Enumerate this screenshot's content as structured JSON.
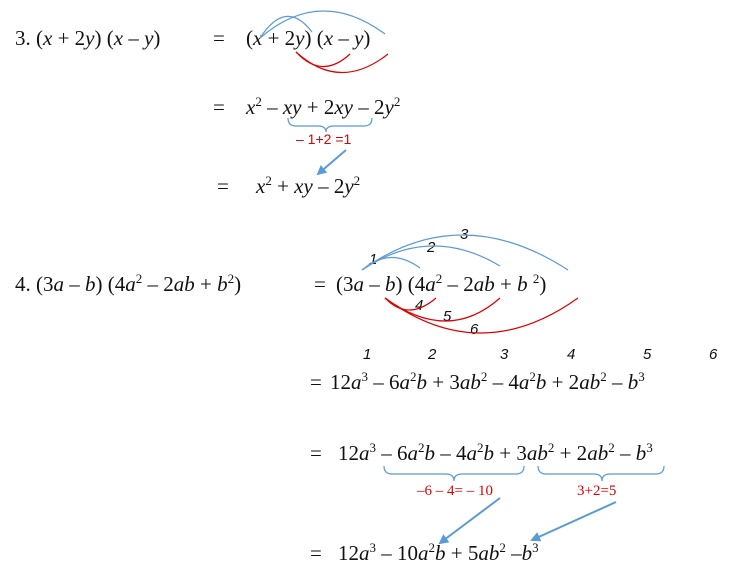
{
  "problem3": {
    "number": "3.",
    "lhs": "(x + 2y) (x – y)",
    "eq": "=",
    "step1": "(x + 2y) (x – y)",
    "step2": "x2 – xy + 2xy – 2y2",
    "note": "– 1+2 =1",
    "step3": "x2 + xy – 2y2"
  },
  "problem4": {
    "number": "4.",
    "lhs": "(3a – b) (4a2 – 2ab + b2)",
    "eq": "=",
    "step1": "(3a – b) (4a2 – 2ab + b 2)",
    "arc_labels": [
      "1",
      "2",
      "3",
      "4",
      "5",
      "6"
    ],
    "term_labels": [
      "1",
      "2",
      "3",
      "4",
      "5",
      "6"
    ],
    "step2": "12a3 – 6a2b + 3ab2 – 4a2b + 2ab2 – b3",
    "step3": "12a3 – 6a2b – 4a2b + 3ab2 + 2ab2 – b3",
    "note_left": "–6 – 4= – 10",
    "note_right": "3+2=5",
    "step4": "12a3 – 10a2b + 5ab2 –b3"
  },
  "colors": {
    "blue": "#5b9bd5",
    "red": "#e00000",
    "text": "#111111"
  }
}
